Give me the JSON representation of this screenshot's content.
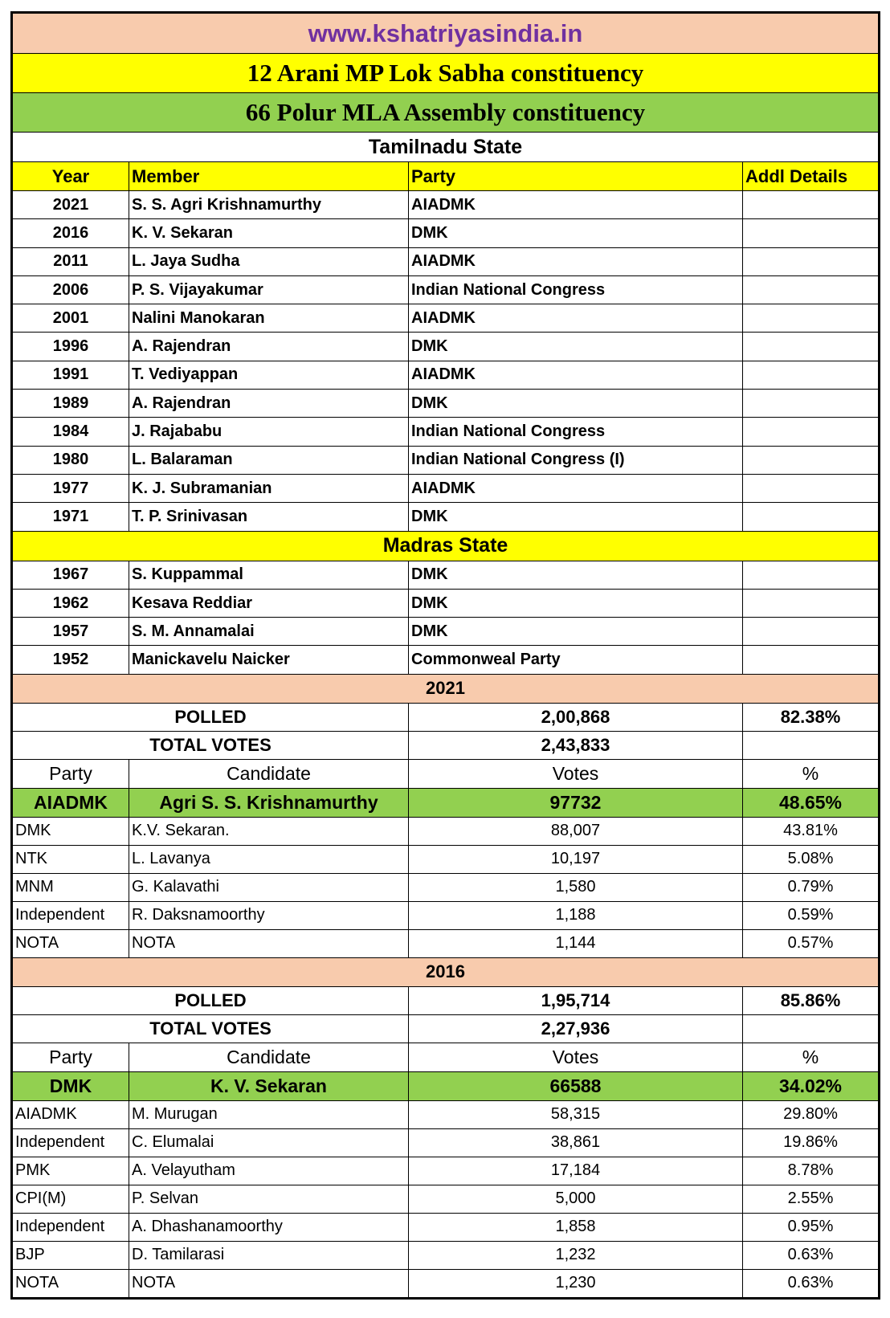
{
  "site": "www.kshatriyasindia.in",
  "lok_sabha_title": "12 Arani MP Lok Sabha constituency",
  "assembly_title": "66 Polur MLA Assembly constituency",
  "colors": {
    "peach": "#f8cbad",
    "yellow": "#ffff00",
    "green": "#92d050",
    "purple": "#7030a0"
  },
  "tamilnadu": {
    "heading": "Tamilnadu State",
    "columns": [
      "Year",
      "Member",
      "Party",
      "Addl Details"
    ],
    "rows": [
      [
        "2021",
        "S. S. Agri Krishnamurthy",
        "AIADMK",
        ""
      ],
      [
        "2016",
        "K. V. Sekaran",
        "DMK",
        ""
      ],
      [
        "2011",
        "L. Jaya Sudha",
        "AIADMK",
        ""
      ],
      [
        "2006",
        "P. S. Vijayakumar",
        "Indian National Congress",
        ""
      ],
      [
        "2001",
        "Nalini Manokaran",
        "AIADMK",
        ""
      ],
      [
        "1996",
        "A. Rajendran",
        "DMK",
        ""
      ],
      [
        "1991",
        "T. Vediyappan",
        "AIADMK",
        ""
      ],
      [
        "1989",
        "A. Rajendran",
        "DMK",
        ""
      ],
      [
        "1984",
        "J. Rajababu",
        "Indian National Congress",
        ""
      ],
      [
        "1980",
        "L. Balaraman",
        "Indian National Congress (I)",
        ""
      ],
      [
        "1977",
        "K. J. Subramanian",
        "AIADMK",
        ""
      ],
      [
        "1971",
        "T. P. Srinivasan",
        "DMK",
        ""
      ]
    ]
  },
  "madras": {
    "heading": "Madras State",
    "rows": [
      [
        "1967",
        "S. Kuppammal",
        "DMK",
        ""
      ],
      [
        "1962",
        "Kesava Reddiar",
        "DMK",
        ""
      ],
      [
        "1957",
        "S. M. Annamalai",
        "DMK",
        ""
      ],
      [
        "1952",
        "Manickavelu Naicker",
        "Commonweal Party",
        ""
      ]
    ]
  },
  "elections": [
    {
      "year": "2021",
      "polled_label": "POLLED",
      "polled": "2,00,868",
      "polled_pct": "82.38%",
      "total_label": "TOTAL VOTES",
      "total": "2,43,833",
      "columns": [
        "Party",
        "Candidate",
        "Votes",
        "%"
      ],
      "winner": [
        "AIADMK",
        "Agri S. S. Krishnamurthy",
        "97732",
        "48.65%"
      ],
      "rows": [
        [
          "DMK",
          "K.V. Sekaran.",
          "88,007",
          "43.81%"
        ],
        [
          "NTK",
          "L. Lavanya",
          "10,197",
          "5.08%"
        ],
        [
          "MNM",
          "G. Kalavathi",
          "1,580",
          "0.79%"
        ],
        [
          "Independent",
          "R. Daksnamoorthy",
          "1,188",
          "0.59%"
        ],
        [
          "NOTA",
          "NOTA",
          "1,144",
          "0.57%"
        ]
      ]
    },
    {
      "year": "2016",
      "polled_label": "POLLED",
      "polled": "1,95,714",
      "polled_pct": "85.86%",
      "total_label": "TOTAL VOTES",
      "total": "2,27,936",
      "columns": [
        "Party",
        "Candidate",
        "Votes",
        "%"
      ],
      "winner": [
        "DMK",
        "K. V. Sekaran",
        "66588",
        "34.02%"
      ],
      "rows": [
        [
          "AIADMK",
          "M. Murugan",
          "58,315",
          "29.80%"
        ],
        [
          "Independent",
          "C. Elumalai",
          "38,861",
          "19.86%"
        ],
        [
          "PMK",
          "A. Velayutham",
          "17,184",
          "8.78%"
        ],
        [
          "CPI(M)",
          "P. Selvan",
          "5,000",
          "2.55%"
        ],
        [
          "Independent",
          "A. Dhashanamoorthy",
          "1,858",
          "0.95%"
        ],
        [
          "BJP",
          "D. Tamilarasi",
          "1,232",
          "0.63%"
        ],
        [
          "NOTA",
          "NOTA",
          "1,230",
          "0.63%"
        ]
      ]
    }
  ]
}
